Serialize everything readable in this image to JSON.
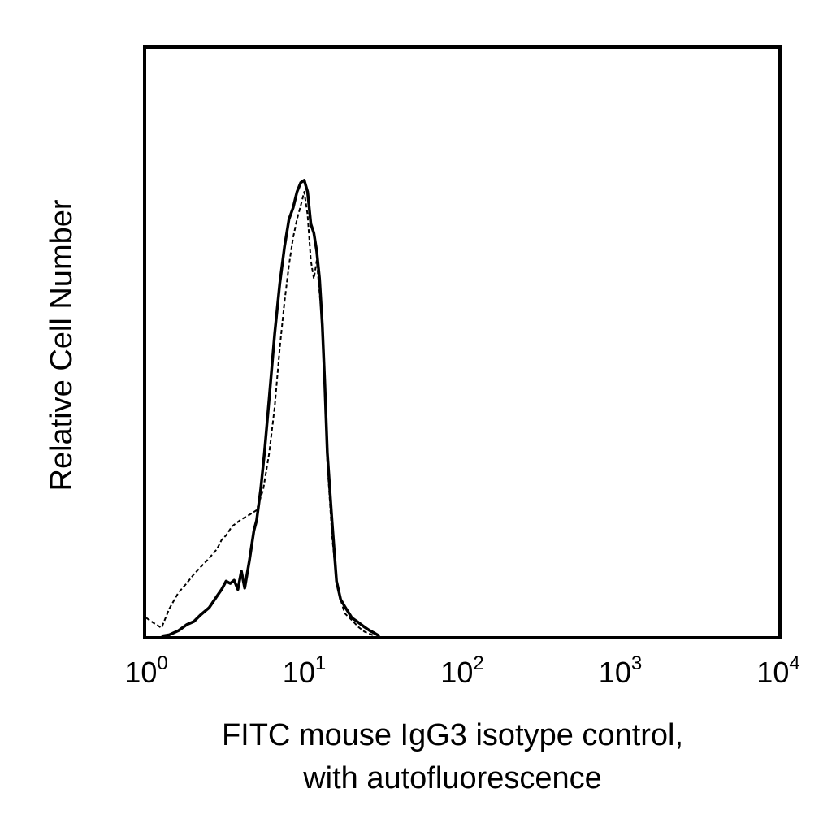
{
  "chart_data": {
    "type": "line",
    "title": "",
    "xlabel_lines": [
      "FITC mouse IgG3 isotype control,",
      "with autofluorescence"
    ],
    "ylabel": "Relative Cell Number",
    "xscale": "log",
    "xlim": [
      1,
      10000
    ],
    "ylim": [
      0,
      100
    ],
    "x_ticks": [
      {
        "base": "10",
        "exp": "0"
      },
      {
        "base": "10",
        "exp": "1"
      },
      {
        "base": "10",
        "exp": "2"
      },
      {
        "base": "10",
        "exp": "3"
      },
      {
        "base": "10",
        "exp": "4"
      }
    ],
    "grid": false,
    "legend": "none",
    "series": [
      {
        "style": "solid",
        "color": "#000000",
        "x": [
          1.25,
          1.4,
          1.6,
          1.8,
          2.0,
          2.2,
          2.5,
          2.8,
          3.0,
          3.2,
          3.4,
          3.6,
          3.8,
          4.0,
          4.2,
          4.5,
          4.8,
          5.0,
          5.3,
          5.6,
          6.0,
          6.5,
          7.0,
          7.5,
          8.0,
          8.5,
          9.0,
          9.5,
          10.0,
          10.5,
          11.0,
          11.5,
          12.0,
          12.5,
          13.0,
          13.5,
          14.0,
          15.0,
          16.0,
          17.0,
          18.0,
          20.0,
          22.0,
          24.0,
          26.0,
          28.0,
          30.0
        ],
        "values": [
          0,
          0.3,
          1.2,
          2.5,
          3.2,
          4.6,
          6.2,
          8.7,
          10.2,
          12.0,
          11.5,
          12.2,
          10.2,
          14.2,
          10.5,
          16.5,
          23.0,
          25.3,
          32.0,
          40.0,
          52.0,
          66.0,
          77.0,
          85.0,
          91.0,
          93.5,
          97.0,
          99.0,
          99.5,
          97.0,
          90.0,
          88.0,
          84.0,
          78.0,
          68.0,
          55.0,
          40.0,
          25.0,
          12.0,
          8.0,
          6.5,
          4.0,
          3.0,
          2.0,
          1.2,
          0.6,
          0
        ]
      },
      {
        "style": "dashed",
        "color": "#000000",
        "x": [
          1.0,
          1.1,
          1.25,
          1.4,
          1.6,
          1.8,
          2.0,
          2.2,
          2.5,
          2.8,
          3.0,
          3.2,
          3.5,
          4.0,
          4.5,
          5.0,
          5.5,
          6.0,
          6.5,
          7.0,
          7.5,
          8.0,
          8.5,
          9.0,
          9.5,
          10.0,
          10.5,
          11.0,
          11.5,
          12.0,
          12.5,
          13.0,
          13.5,
          14.0,
          15.0,
          16.0,
          17.0,
          18.0,
          20.0,
          22.0,
          24.0,
          26.0,
          28.0
        ],
        "values": [
          4.0,
          3.0,
          1.8,
          6.0,
          9.5,
          11.5,
          13.5,
          15.0,
          17.0,
          19.0,
          21.0,
          22.0,
          24.0,
          25.5,
          26.5,
          27.5,
          32.0,
          40.0,
          50.0,
          63.0,
          73.0,
          81.0,
          87.0,
          91.0,
          94.0,
          97.0,
          92.0,
          82.0,
          78.0,
          82.0,
          75.0,
          68.0,
          55.0,
          38.0,
          22.0,
          12.0,
          8.0,
          5.0,
          3.5,
          2.0,
          1.0,
          0.5,
          0
        ]
      }
    ]
  }
}
